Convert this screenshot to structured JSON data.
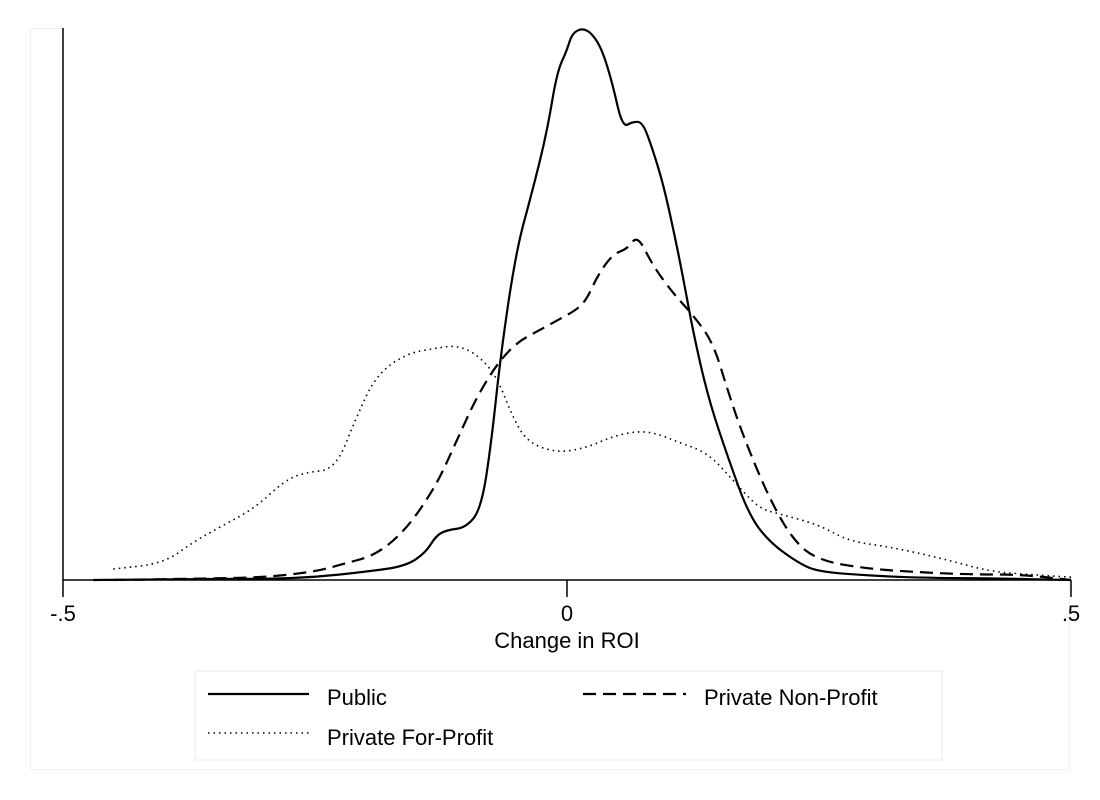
{
  "chart_data": {
    "type": "line",
    "title": "",
    "xlabel": "Change in ROI",
    "ylabel": "",
    "xlim": [
      -0.5,
      0.5
    ],
    "ylim": [
      0,
      1
    ],
    "x_ticks": [
      -0.5,
      0,
      0.5
    ],
    "x_tick_labels": [
      "-.5",
      "0",
      ".5"
    ],
    "grid": false,
    "legend_position": "bottom",
    "series": [
      {
        "name": "Public",
        "line_style": "solid",
        "color": "#000000",
        "points": [
          [
            -0.47,
            0.0
          ],
          [
            -0.4,
            0.001
          ],
          [
            -0.35,
            0.002
          ],
          [
            -0.3,
            0.002
          ],
          [
            -0.25,
            0.005
          ],
          [
            -0.2,
            0.015
          ],
          [
            -0.16,
            0.025
          ],
          [
            -0.14,
            0.05
          ],
          [
            -0.13,
            0.08
          ],
          [
            -0.12,
            0.09
          ],
          [
            -0.1,
            0.095
          ],
          [
            -0.085,
            0.13
          ],
          [
            -0.075,
            0.25
          ],
          [
            -0.065,
            0.42
          ],
          [
            -0.05,
            0.6
          ],
          [
            -0.035,
            0.7
          ],
          [
            -0.02,
            0.81
          ],
          [
            -0.01,
            0.92
          ],
          [
            0.0,
            0.96
          ],
          [
            0.005,
            0.99
          ],
          [
            0.015,
            1.0
          ],
          [
            0.025,
            0.99
          ],
          [
            0.035,
            0.96
          ],
          [
            0.045,
            0.9
          ],
          [
            0.055,
            0.82
          ],
          [
            0.065,
            0.83
          ],
          [
            0.075,
            0.83
          ],
          [
            0.085,
            0.78
          ],
          [
            0.095,
            0.72
          ],
          [
            0.105,
            0.64
          ],
          [
            0.115,
            0.55
          ],
          [
            0.125,
            0.45
          ],
          [
            0.14,
            0.33
          ],
          [
            0.16,
            0.22
          ],
          [
            0.18,
            0.12
          ],
          [
            0.2,
            0.07
          ],
          [
            0.23,
            0.03
          ],
          [
            0.25,
            0.015
          ],
          [
            0.3,
            0.008
          ],
          [
            0.35,
            0.004
          ],
          [
            0.42,
            0.003
          ],
          [
            0.5,
            0.0
          ]
        ]
      },
      {
        "name": "Private Non-Profit",
        "line_style": "dashed",
        "color": "#000000",
        "points": [
          [
            -0.45,
            0.0
          ],
          [
            -0.35,
            0.003
          ],
          [
            -0.3,
            0.005
          ],
          [
            -0.25,
            0.015
          ],
          [
            -0.22,
            0.03
          ],
          [
            -0.19,
            0.045
          ],
          [
            -0.16,
            0.09
          ],
          [
            -0.13,
            0.17
          ],
          [
            -0.11,
            0.25
          ],
          [
            -0.09,
            0.33
          ],
          [
            -0.07,
            0.39
          ],
          [
            -0.05,
            0.43
          ],
          [
            -0.03,
            0.45
          ],
          [
            -0.01,
            0.47
          ],
          [
            0.01,
            0.49
          ],
          [
            0.02,
            0.51
          ],
          [
            0.03,
            0.55
          ],
          [
            0.045,
            0.59
          ],
          [
            0.06,
            0.6
          ],
          [
            0.07,
            0.625
          ],
          [
            0.085,
            0.57
          ],
          [
            0.105,
            0.52
          ],
          [
            0.125,
            0.48
          ],
          [
            0.145,
            0.43
          ],
          [
            0.16,
            0.34
          ],
          [
            0.175,
            0.26
          ],
          [
            0.2,
            0.15
          ],
          [
            0.225,
            0.07
          ],
          [
            0.25,
            0.035
          ],
          [
            0.3,
            0.02
          ],
          [
            0.35,
            0.014
          ],
          [
            0.4,
            0.01
          ],
          [
            0.45,
            0.01
          ],
          [
            0.5,
            0.0
          ]
        ]
      },
      {
        "name": "Private For-Profit",
        "line_style": "dotted",
        "color": "#000000",
        "points": [
          [
            -0.45,
            0.02
          ],
          [
            -0.4,
            0.03
          ],
          [
            -0.37,
            0.07
          ],
          [
            -0.34,
            0.1
          ],
          [
            -0.31,
            0.13
          ],
          [
            -0.28,
            0.18
          ],
          [
            -0.26,
            0.195
          ],
          [
            -0.23,
            0.2
          ],
          [
            -0.21,
            0.29
          ],
          [
            -0.19,
            0.37
          ],
          [
            -0.16,
            0.41
          ],
          [
            -0.13,
            0.42
          ],
          [
            -0.11,
            0.425
          ],
          [
            -0.09,
            0.41
          ],
          [
            -0.07,
            0.37
          ],
          [
            -0.055,
            0.3
          ],
          [
            -0.04,
            0.25
          ],
          [
            -0.01,
            0.23
          ],
          [
            0.02,
            0.24
          ],
          [
            0.045,
            0.26
          ],
          [
            0.07,
            0.27
          ],
          [
            0.09,
            0.265
          ],
          [
            0.11,
            0.25
          ],
          [
            0.14,
            0.23
          ],
          [
            0.165,
            0.18
          ],
          [
            0.19,
            0.13
          ],
          [
            0.21,
            0.12
          ],
          [
            0.25,
            0.1
          ],
          [
            0.28,
            0.07
          ],
          [
            0.32,
            0.06
          ],
          [
            0.37,
            0.04
          ],
          [
            0.42,
            0.015
          ],
          [
            0.46,
            0.01
          ],
          [
            0.5,
            0.005
          ]
        ]
      }
    ]
  },
  "legend": {
    "items": [
      {
        "label": "Public",
        "style": "solid"
      },
      {
        "label": "Private Non-Profit",
        "style": "dashed"
      },
      {
        "label": "Private For-Profit",
        "style": "dotted"
      }
    ]
  }
}
